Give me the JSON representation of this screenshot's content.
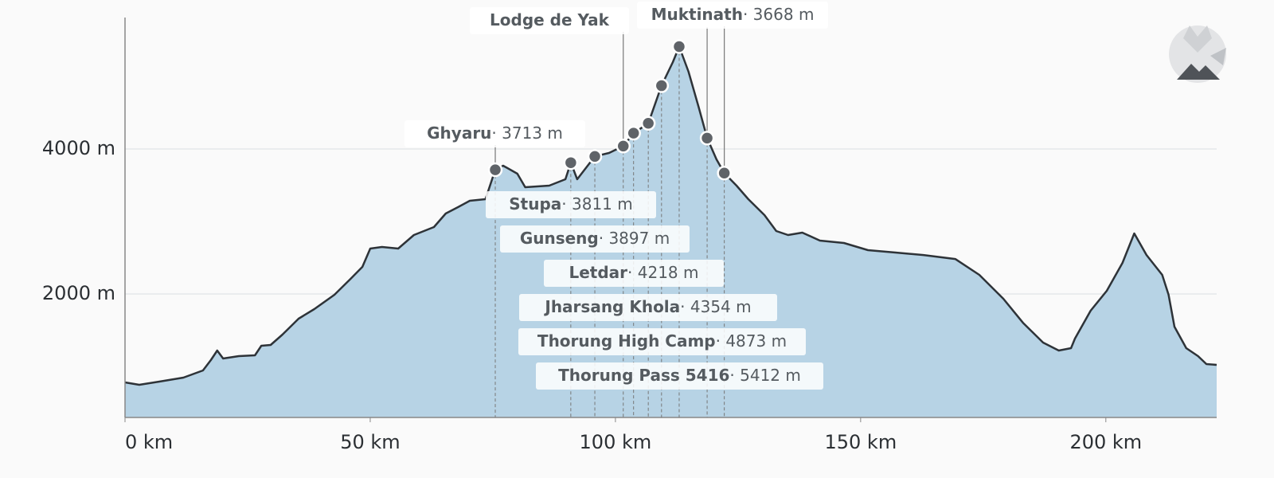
{
  "chart_data": {
    "type": "area",
    "x": [
      0,
      2.9,
      7.0,
      11.9,
      15.9,
      17.5,
      18.8,
      20.0,
      23.2,
      26.5,
      27.8,
      29.7,
      32.1,
      35.4,
      38.6,
      42.7,
      46.0,
      48.4,
      50.0,
      52.4,
      55.7,
      58.9,
      63.0,
      65.4,
      67.9,
      70.3,
      73.5,
      75.5,
      77.1,
      80.0,
      81.6,
      86.5,
      89.8,
      90.9,
      92.2,
      95.8,
      98.7,
      101.6,
      103.7,
      106.7,
      109.4,
      111.7,
      113.0,
      114.9,
      117.0,
      118.7,
      120.6,
      122.2,
      124.7,
      127.1,
      130.4,
      132.8,
      135.2,
      138.1,
      141.7,
      146.6,
      151.5,
      157.1,
      162.8,
      169.3,
      174.2,
      179.1,
      183.1,
      187.2,
      190.4,
      192.9,
      193.7,
      196.9,
      200.2,
      203.4,
      205.8,
      208.3,
      211.5,
      212.8,
      214.0,
      216.4,
      218.8,
      220.5,
      222.6
    ],
    "values": [
      780,
      747,
      791,
      846,
      945,
      1088,
      1220,
      1110,
      1143,
      1154,
      1286,
      1297,
      1440,
      1659,
      1791,
      1989,
      2209,
      2374,
      2626,
      2648,
      2626,
      2813,
      2923,
      3110,
      3198,
      3286,
      3308,
      3713,
      3769,
      3659,
      3473,
      3495,
      3582,
      3811,
      3582,
      3897,
      3945,
      4040,
      4218,
      4354,
      4873,
      5198,
      5412,
      5066,
      4571,
      4150,
      3857,
      3668,
      3495,
      3308,
      3088,
      2868,
      2813,
      2846,
      2736,
      2703,
      2604,
      2571,
      2538,
      2483,
      2264,
      1934,
      1604,
      1330,
      1220,
      1253,
      1385,
      1769,
      2044,
      2429,
      2835,
      2538,
      2264,
      1989,
      1549,
      1253,
      1143,
      1033,
      1022
    ],
    "color": "#b7d3e5",
    "line_color": "#2e3338",
    "xlim": [
      0,
      222.6
    ],
    "ylim": [
      297,
      5813
    ],
    "xticks": [
      {
        "value": 0,
        "label": "0 km"
      },
      {
        "value": 50,
        "label": "50 km"
      },
      {
        "value": 100,
        "label": "100 km"
      },
      {
        "value": 150,
        "label": "150 km"
      },
      {
        "value": 200,
        "label": "200 km"
      }
    ],
    "yticks": [
      {
        "value": 2000,
        "label": "2000 m"
      },
      {
        "value": 4000,
        "label": "4000 m"
      }
    ],
    "grid": true,
    "waypoints": [
      {
        "name": "Ghyaru",
        "km": 75.5,
        "elevation": 3713,
        "label": "· 3713 m"
      },
      {
        "name": "Stupa",
        "km": 90.9,
        "elevation": 3811,
        "label": "· 3811 m"
      },
      {
        "name": "Gunseng",
        "km": 95.8,
        "elevation": 3897,
        "label": "· 3897 m"
      },
      {
        "name": "Lodge de Yak",
        "km": 101.6,
        "elevation": 4040
      },
      {
        "name": "Letdar",
        "km": 103.7,
        "elevation": 4218,
        "label": "· 4218 m"
      },
      {
        "name": "Jharsang Khola",
        "km": 106.7,
        "elevation": 4354,
        "label": "· 4354 m"
      },
      {
        "name": "Thorung High Camp",
        "km": 109.4,
        "elevation": 4873,
        "label": "· 4873 m"
      },
      {
        "name": "Thorung Pass 5416",
        "km": 113.0,
        "elevation": 5412,
        "label": "· 5412 m"
      },
      {
        "km": 118.7,
        "elevation": 4150
      },
      {
        "name": "Muktinath",
        "km": 122.2,
        "elevation": 3668,
        "label": "· 3668 m"
      }
    ]
  }
}
